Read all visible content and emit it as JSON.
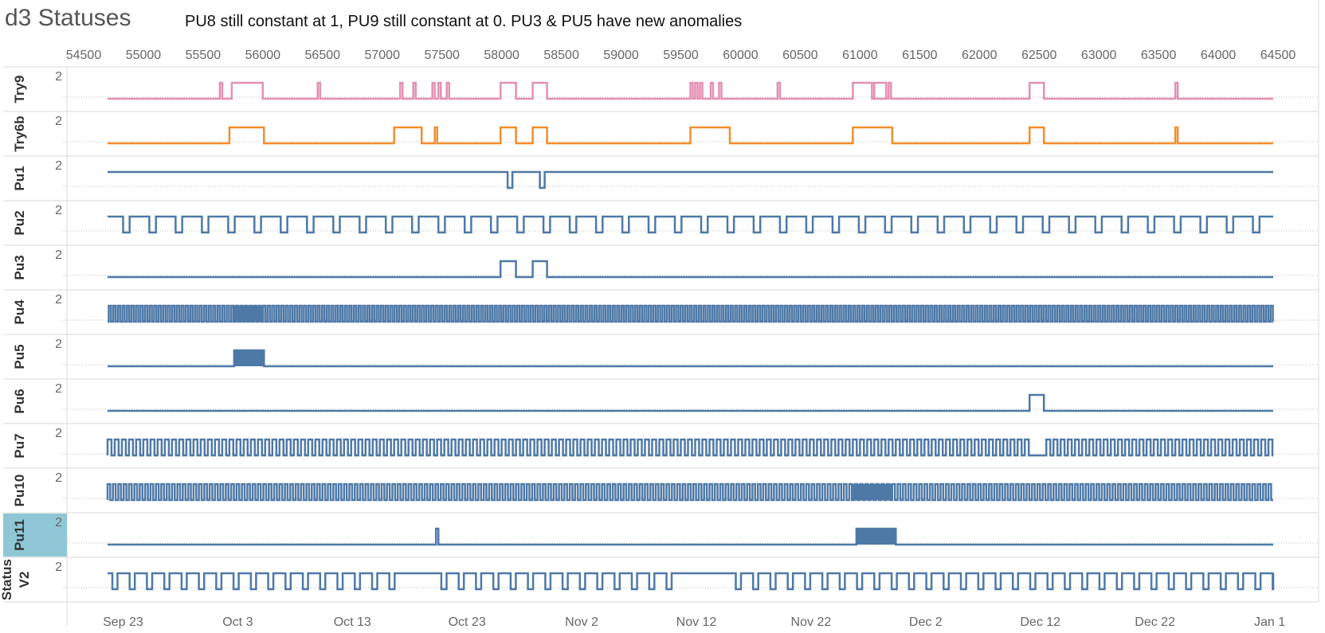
{
  "header": {
    "title": "d3 Statuses",
    "subtitle": "PU8 still constant at 1, PU9 still constant at 0.   PU3 & PU5 have new anomalies"
  },
  "colors": {
    "pink": "#e48fb3",
    "orange": "#f28e2b",
    "blue": "#4e79a7",
    "highlight": "#8fc7d6",
    "grid": "#d9d9d9",
    "text": "#666666"
  },
  "chart_data": {
    "type": "line",
    "top_axis": {
      "ticks": [
        "54500",
        "55000",
        "55500",
        "56000",
        "56500",
        "57000",
        "57500",
        "58000",
        "58500",
        "59000",
        "59500",
        "60000",
        "60500",
        "61000",
        "61500",
        "62000",
        "62500",
        "63000",
        "63500",
        "64000",
        "64500"
      ],
      "min": 54360,
      "max": 64760
    },
    "bottom_axis": {
      "ticks": [
        "Sep 23",
        "Oct 3",
        "Oct 13",
        "Oct 23",
        "Nov 2",
        "Nov 12",
        "Nov 22",
        "Dec 2",
        "Dec 12",
        "Dec 22",
        "Jan 1"
      ],
      "tick_values": [
        54830,
        55790,
        56750,
        57710,
        58670,
        59630,
        60590,
        61550,
        62510,
        63470,
        64430
      ]
    },
    "x_range": [
      54700,
      64460
    ],
    "y_tick_label": "2",
    "series": [
      {
        "name": "Try9",
        "color": "#e48fb3",
        "pattern": "steps",
        "steps": [
          [
            55640,
            55660
          ],
          [
            55740,
            56000
          ],
          [
            56460,
            56480
          ],
          [
            57150,
            57170
          ],
          [
            57260,
            57280
          ],
          [
            57420,
            57440
          ],
          [
            57470,
            57490
          ],
          [
            57540,
            57560
          ],
          [
            57990,
            58120
          ],
          [
            58260,
            58380
          ],
          [
            59580,
            59600
          ],
          [
            59620,
            59640
          ],
          [
            59660,
            59680
          ],
          [
            59750,
            59770
          ],
          [
            59820,
            59840
          ],
          [
            60310,
            60330
          ],
          [
            60940,
            61220
          ],
          [
            61100,
            61120
          ],
          [
            61240,
            61260
          ],
          [
            62420,
            62540
          ],
          [
            63640,
            63660
          ]
        ]
      },
      {
        "name": "Try6b",
        "color": "#f28e2b",
        "pattern": "steps",
        "steps": [
          [
            55720,
            56010
          ],
          [
            57100,
            57330
          ],
          [
            57440,
            57460
          ],
          [
            57990,
            58120
          ],
          [
            58260,
            58380
          ],
          [
            59580,
            59910
          ],
          [
            60940,
            61270
          ],
          [
            62420,
            62540
          ],
          [
            63640,
            63660
          ]
        ]
      },
      {
        "name": "Pu1",
        "color": "#4e79a7",
        "pattern": "steps",
        "inverted": true,
        "steps": [
          [
            58050,
            58090
          ],
          [
            58320,
            58360
          ]
        ]
      },
      {
        "name": "Pu2",
        "color": "#4e79a7",
        "pattern": "periodic",
        "inverted": true,
        "period": 220,
        "duty": 0.25,
        "phase": 130
      },
      {
        "name": "Pu3",
        "color": "#4e79a7",
        "pattern": "steps",
        "steps": [
          [
            57990,
            58120
          ],
          [
            58260,
            58380
          ]
        ]
      },
      {
        "name": "Pu4",
        "color": "#4e79a7",
        "pattern": "periodic",
        "period": 38,
        "duty": 0.5,
        "phase": 10,
        "solid": [
          [
            55760,
            56000
          ]
        ]
      },
      {
        "name": "Pu5",
        "color": "#4e79a7",
        "pattern": "steps",
        "solid": [
          [
            55760,
            56010
          ]
        ],
        "steps": [
          [
            55760,
            56010
          ]
        ]
      },
      {
        "name": "Pu6",
        "color": "#4e79a7",
        "pattern": "steps",
        "steps": [
          [
            62420,
            62540
          ]
        ]
      },
      {
        "name": "Pu7",
        "color": "#4e79a7",
        "pattern": "periodic",
        "period": 60,
        "duty": 0.55,
        "phase": 0,
        "gaps": [
          [
            62450,
            62560
          ]
        ]
      },
      {
        "name": "Pu10",
        "color": "#4e79a7",
        "pattern": "periodic",
        "period": 45,
        "duty": 0.5,
        "phase": 0,
        "solid": [
          [
            60930,
            61270
          ]
        ]
      },
      {
        "name": "Pu11",
        "color": "#4e79a7",
        "pattern": "steps",
        "highlight": true,
        "steps": [
          [
            57450,
            57470
          ],
          [
            60970,
            61300
          ]
        ],
        "solid": [
          [
            60970,
            61300
          ]
        ]
      },
      {
        "name": "Status V2",
        "color": "#4e79a7",
        "pattern": "periodic",
        "inverted": true,
        "period": 145,
        "duty": 0.3,
        "phase": 40,
        "gaps": [
          [
            57160,
            57420
          ],
          [
            59520,
            59960
          ]
        ]
      }
    ]
  }
}
